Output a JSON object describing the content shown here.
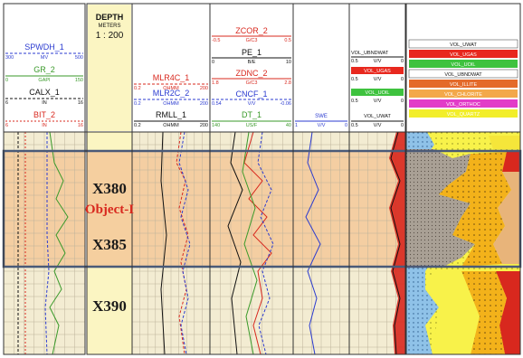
{
  "header": {
    "track1": {
      "curves": [
        {
          "name": "SPWDH_1",
          "unit": "MV",
          "min": "300",
          "max": "500",
          "color": "#2b3bd0"
        },
        {
          "name": "GR_2",
          "unit": "GAPI",
          "min": "0",
          "max": "150",
          "color": "#3a9a2a"
        },
        {
          "name": "CALX_1",
          "unit": "IN",
          "min": "6",
          "max": "16",
          "color": "#111111"
        },
        {
          "name": "BIT_2",
          "unit": "IN",
          "min": "6",
          "max": "16",
          "color": "#d8281e"
        }
      ]
    },
    "depth": {
      "title": "DEPTH",
      "unit": "METERS",
      "scale": "1 : 200"
    },
    "track2": {
      "curves": [
        {
          "name": "MLR4C_1",
          "unit": "OHMM",
          "min": "0.2",
          "max": "200",
          "color": "#d8281e"
        },
        {
          "name": "MLR2C_2",
          "unit": "OHMM",
          "min": "0.2",
          "max": "200",
          "color": "#2b3bd0"
        },
        {
          "name": "RMLL_1",
          "unit": "OHMM",
          "min": "0.2",
          "max": "200",
          "color": "#111111"
        }
      ]
    },
    "track3": {
      "curves": [
        {
          "name": "ZCOR_2",
          "unit": "G/C3",
          "min": "-0.5",
          "max": "0.5",
          "color": "#d8281e"
        },
        {
          "name": "PE_1",
          "unit": "B/E",
          "min": "0",
          "max": "10",
          "color": "#111111"
        },
        {
          "name": "ZDNC_2",
          "unit": "G/C3",
          "min": "1.8",
          "max": "2.8",
          "color": "#d8281e"
        },
        {
          "name": "CNCF_1",
          "unit": "V/V",
          "min": "0.54",
          "max": "-0.06",
          "color": "#2b3bd0"
        },
        {
          "name": "DT_1",
          "unit": "US/F",
          "min": "140",
          "max": "40",
          "color": "#3a9a2a"
        }
      ]
    },
    "track4": {
      "curve": {
        "name": "SWE",
        "unit": "V/V",
        "min": "1",
        "max": "0",
        "color": "#2b3bd0"
      }
    },
    "track5": {
      "entries": [
        {
          "name": "VOL_UBNDWAT",
          "unit": "V/V",
          "min": "0.5",
          "max": "0"
        },
        {
          "name": "VOL_UGAS",
          "unit": "V/V",
          "min": "0.5",
          "max": "0"
        },
        {
          "name": "VOL_UOIL",
          "unit": "V/V",
          "min": "0.5",
          "max": "0"
        },
        {
          "name": "VOL_UWAT",
          "unit": "V/V",
          "min": "0.5",
          "max": "0"
        }
      ]
    },
    "track6": {
      "legend": [
        {
          "name": "VOL_UWAT",
          "color": "#ffffff"
        },
        {
          "name": "VOL_UGAS",
          "color": "#e8281e"
        },
        {
          "name": "VOL_UOIL",
          "color": "#3ec23e"
        },
        {
          "name": "VOL_UBNDWAT",
          "color": "#ffffff"
        },
        {
          "name": "VOL_ILLITE",
          "color": "#e46a2a"
        },
        {
          "name": "VOL_CHLORITE",
          "color": "#f3a84a"
        },
        {
          "name": "VOL_ORTHOC",
          "color": "#e23cc8"
        },
        {
          "name": "VOL_QUARTZ",
          "color": "#f2ee2a"
        }
      ]
    }
  },
  "body": {
    "depth_labels": [
      "X380",
      "X385",
      "X390"
    ],
    "object_label": "Object-I",
    "zone": {
      "top_depth": "X376.5",
      "bottom_depth": "X387.5",
      "highlight_color": "#f5c99a"
    }
  },
  "colors": {
    "track_bg": "#f3ecd2",
    "depth_bg": "#fbf5c2",
    "zone_border": "#4a5a78",
    "grid": "#bbbbbb"
  }
}
